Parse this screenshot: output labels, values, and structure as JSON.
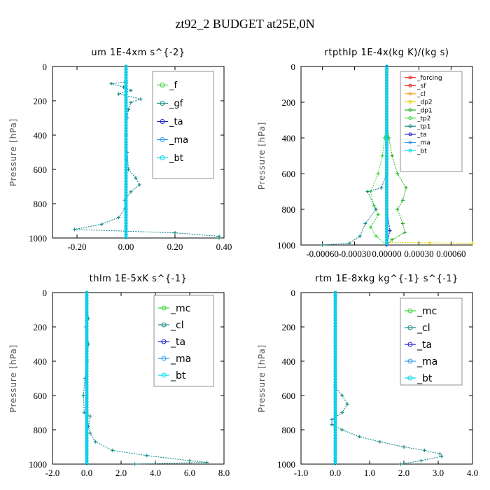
{
  "page": {
    "title": "zt92_2  BUDGET at25E,0N"
  },
  "colors": {
    "red": "#e8231f",
    "orange": "#f0a020",
    "yellow": "#e0d000",
    "dkgreen": "#20b020",
    "green": "#3ad43a",
    "teal": "#1a8a8a",
    "blue": "#2020d0",
    "sky": "#2f9bf0",
    "cyan": "#00d8f0"
  },
  "chart_data": [
    {
      "type": "line",
      "title": "um   1E-4xm  s^{-2}",
      "ylabel": "Pressure [hPa]",
      "xlim": [
        -0.3,
        0.4
      ],
      "ylim": [
        1000,
        0
      ],
      "xticks": [
        -0.2,
        0.0,
        0.2,
        0.4
      ],
      "xtick_labels": [
        "-0.20",
        "0.00",
        "0.20",
        "0.40"
      ],
      "yticks": [
        0,
        200,
        400,
        600,
        800,
        1000
      ],
      "legend_position": "top-right",
      "series": [
        {
          "name": "_f",
          "color": "#3ad43a",
          "values": [
            [
              0,
              0
            ],
            [
              0,
              1000
            ]
          ]
        },
        {
          "name": "_gf",
          "color": "#1a8a8a",
          "values": [
            [
              0,
              0
            ],
            [
              0,
              90
            ],
            [
              -0.06,
              100
            ],
            [
              -0.01,
              120
            ],
            [
              0.02,
              140
            ],
            [
              -0.03,
              160
            ],
            [
              0.06,
              190
            ],
            [
              0.02,
              210
            ],
            [
              0.01,
              250
            ],
            [
              0.005,
              300
            ],
            [
              0,
              400
            ],
            [
              0.005,
              500
            ],
            [
              0.01,
              600
            ],
            [
              0.04,
              650
            ],
            [
              0.055,
              690
            ],
            [
              0.02,
              730
            ],
            [
              -0.005,
              780
            ],
            [
              -0.005,
              830
            ],
            [
              -0.03,
              880
            ],
            [
              -0.1,
              920
            ],
            [
              -0.21,
              950
            ],
            [
              0.2,
              970
            ],
            [
              0.38,
              990
            ],
            [
              0.38,
              1000
            ]
          ]
        },
        {
          "name": "_ta",
          "color": "#2020d0",
          "values": [
            [
              0,
              0
            ],
            [
              0,
              1000
            ]
          ]
        },
        {
          "name": "_ma",
          "color": "#2f9bf0",
          "values": [
            [
              0,
              0
            ],
            [
              0,
              1000
            ]
          ]
        },
        {
          "name": "_bt",
          "color": "#00d8f0",
          "values": [
            [
              0,
              0
            ],
            [
              0,
              1000
            ]
          ]
        }
      ]
    },
    {
      "type": "line",
      "title": "rtpthlp   1E-4x(kg K)/(kg s)",
      "ylabel": "Pressure [hPa]",
      "xlim": [
        -0.0008,
        0.0008
      ],
      "ylim": [
        1000,
        0
      ],
      "xticks": [
        -0.0006,
        -0.0003,
        0.0,
        0.0003,
        0.0006
      ],
      "xtick_labels": [
        "-0.00060",
        "-0.00030",
        "0.00000",
        "0.00030",
        "0.00060"
      ],
      "yticks": [
        0,
        200,
        400,
        600,
        800,
        1000
      ],
      "legend_position": "top-right",
      "series": [
        {
          "name": "_forcing",
          "color": "#e8231f",
          "values": [
            [
              0,
              0
            ],
            [
              0,
              1000
            ]
          ]
        },
        {
          "name": "_sf",
          "color": "#e8231f",
          "values": [
            [
              0,
              0
            ],
            [
              0,
              1000
            ]
          ]
        },
        {
          "name": "_cl",
          "color": "#f0a020",
          "values": [
            [
              0,
              0
            ],
            [
              0,
              1000
            ]
          ]
        },
        {
          "name": "_dp2",
          "color": "#e0d000",
          "values": [
            [
              0,
              0
            ],
            [
              0,
              985
            ],
            [
              0.0004,
              988
            ],
            [
              0.0008,
              990
            ]
          ]
        },
        {
          "name": "_dp1",
          "color": "#20b020",
          "values": [
            [
              0,
              0
            ],
            [
              0,
              300
            ],
            [
              2e-05,
              400
            ],
            [
              5e-05,
              500
            ],
            [
              0.0001,
              600
            ],
            [
              0.00018,
              680
            ],
            [
              0.00015,
              750
            ],
            [
              0.0001,
              800
            ],
            [
              0.00015,
              880
            ],
            [
              0.00017,
              930
            ],
            [
              5e-05,
              970
            ],
            [
              0,
              1000
            ]
          ]
        },
        {
          "name": "_tp2",
          "color": "#3ad43a",
          "values": [
            [
              0,
              0
            ],
            [
              0,
              300
            ],
            [
              -2e-05,
              400
            ],
            [
              -4e-05,
              500
            ],
            [
              -8e-05,
              600
            ],
            [
              -0.00015,
              700
            ],
            [
              -0.00012,
              780
            ],
            [
              -8e-05,
              830
            ],
            [
              -0.00015,
              900
            ],
            [
              -0.0001,
              950
            ],
            [
              0,
              1000
            ]
          ]
        },
        {
          "name": "_tp1",
          "color": "#1a8a8a",
          "values": [
            [
              0,
              0
            ],
            [
              0,
              600
            ],
            [
              -5e-05,
              680
            ],
            [
              -0.00018,
              700
            ],
            [
              -0.0001,
              800
            ],
            [
              -0.0002,
              880
            ],
            [
              -0.00025,
              950
            ],
            [
              -0.00035,
              990
            ],
            [
              -0.0006,
              1000
            ]
          ]
        },
        {
          "name": "_ta",
          "color": "#2020d0",
          "values": [
            [
              0,
              0
            ],
            [
              0,
              800
            ],
            [
              3e-05,
              920
            ],
            [
              0,
              1000
            ]
          ]
        },
        {
          "name": "_ma",
          "color": "#2f9bf0",
          "values": [
            [
              0,
              0
            ],
            [
              0,
              1000
            ]
          ]
        },
        {
          "name": "_bt",
          "color": "#00d8f0",
          "values": [
            [
              0,
              0
            ],
            [
              0,
              1000
            ]
          ]
        }
      ]
    },
    {
      "type": "line",
      "title": "thlm   1E-5xK  s^{-1}",
      "ylabel": "Pressure [hPa]",
      "xlim": [
        -2.0,
        8.0
      ],
      "ylim": [
        1000,
        0
      ],
      "xticks": [
        -2,
        0,
        2,
        4,
        6,
        8
      ],
      "xtick_labels": [
        "-2.0",
        "0.0",
        "2.0",
        "4.0",
        "6.0",
        "8.0"
      ],
      "yticks": [
        0,
        200,
        400,
        600,
        800,
        1000
      ],
      "legend_position": "top-right",
      "series": [
        {
          "name": "_mc",
          "color": "#3ad43a",
          "values": [
            [
              0,
              0
            ],
            [
              0,
              1000
            ]
          ]
        },
        {
          "name": "_cl",
          "color": "#1a8a8a",
          "values": [
            [
              0,
              0
            ],
            [
              0,
              100
            ],
            [
              0.1,
              150
            ],
            [
              -0.05,
              200
            ],
            [
              0.1,
              300
            ],
            [
              0,
              400
            ],
            [
              -0.1,
              500
            ],
            [
              -0.2,
              600
            ],
            [
              -0.15,
              700
            ],
            [
              0.2,
              720
            ],
            [
              0.1,
              780
            ],
            [
              0.2,
              820
            ],
            [
              0.5,
              870
            ],
            [
              1.5,
              920
            ],
            [
              3.5,
              950
            ],
            [
              6.0,
              980
            ],
            [
              7.0,
              990
            ],
            [
              2.8,
              1000
            ]
          ]
        },
        {
          "name": "_ta",
          "color": "#2020d0",
          "values": [
            [
              0,
              0
            ],
            [
              0,
              1000
            ]
          ]
        },
        {
          "name": "_ma",
          "color": "#2f9bf0",
          "values": [
            [
              0,
              0
            ],
            [
              0,
              1000
            ]
          ]
        },
        {
          "name": "_bt",
          "color": "#00d8f0",
          "values": [
            [
              0,
              0
            ],
            [
              0,
              1000
            ]
          ]
        }
      ]
    },
    {
      "type": "line",
      "title": "rtm   1E-8xkg  kg^{-1}  s^{-1}",
      "ylabel": "Pressure [hPa]",
      "xlim": [
        -1.0,
        4.0
      ],
      "ylim": [
        1000,
        0
      ],
      "xticks": [
        -1,
        0,
        1,
        2,
        3,
        4
      ],
      "xtick_labels": [
        "-1.0",
        "0.0",
        "1.0",
        "2.0",
        "3.0",
        "4.0"
      ],
      "yticks": [
        0,
        200,
        400,
        600,
        800,
        1000
      ],
      "legend_position": "top-right",
      "series": [
        {
          "name": "_mc",
          "color": "#3ad43a",
          "values": [
            [
              0,
              0
            ],
            [
              0,
              1000
            ]
          ]
        },
        {
          "name": "_cl",
          "color": "#1a8a8a",
          "values": [
            [
              0,
              0
            ],
            [
              0,
              550
            ],
            [
              0.2,
              600
            ],
            [
              0.35,
              650
            ],
            [
              0.2,
              700
            ],
            [
              -0.1,
              740
            ],
            [
              -0.1,
              770
            ],
            [
              0.2,
              800
            ],
            [
              0.7,
              840
            ],
            [
              1.3,
              870
            ],
            [
              2.0,
              900
            ],
            [
              2.6,
              920
            ],
            [
              3.05,
              940
            ],
            [
              3.1,
              955
            ],
            [
              2.5,
              980
            ],
            [
              1.9,
              1000
            ]
          ]
        },
        {
          "name": "_ta",
          "color": "#2020d0",
          "values": [
            [
              0,
              0
            ],
            [
              0,
              1000
            ]
          ]
        },
        {
          "name": "_ma",
          "color": "#2f9bf0",
          "values": [
            [
              0,
              0
            ],
            [
              0,
              1000
            ]
          ]
        },
        {
          "name": "_bt",
          "color": "#00d8f0",
          "values": [
            [
              0,
              0
            ],
            [
              0,
              1000
            ]
          ]
        }
      ]
    }
  ]
}
